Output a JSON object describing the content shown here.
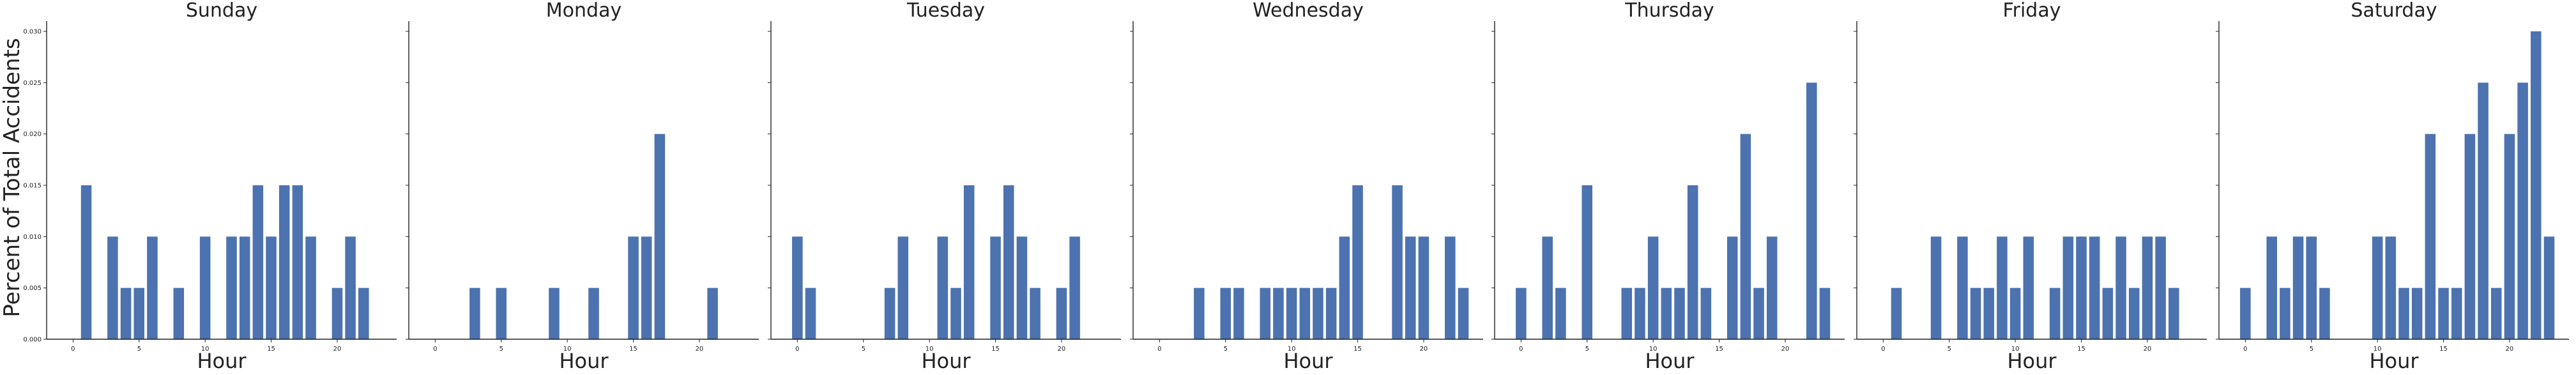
{
  "chart_data": {
    "type": "bar",
    "layout": "small-multiples",
    "ylabel": "Percent of Total Accidents",
    "xlabel": "Hour",
    "ylim": [
      0,
      0.031
    ],
    "yticks": [
      "0.000",
      "0.005",
      "0.010",
      "0.015",
      "0.020",
      "0.025",
      "0.030"
    ],
    "xlim": [
      -2,
      24.5
    ],
    "xticks": [
      "0",
      "5",
      "10",
      "15",
      "20"
    ],
    "bar_color": "#4c72b0",
    "grid": false,
    "shared_y_axis": true,
    "panels": [
      {
        "title": "Sunday",
        "x": [
          1,
          3,
          4,
          5,
          6,
          8,
          10,
          12,
          13,
          14,
          15,
          16,
          17,
          18,
          20,
          21,
          22
        ],
        "values": [
          0.015,
          0.01,
          0.005,
          0.005,
          0.01,
          0.005,
          0.01,
          0.01,
          0.01,
          0.015,
          0.01,
          0.015,
          0.015,
          0.01,
          0.005,
          0.01,
          0.005
        ]
      },
      {
        "title": "Monday",
        "x": [
          3,
          5,
          9,
          12,
          15,
          16,
          17,
          21
        ],
        "values": [
          0.005,
          0.005,
          0.005,
          0.005,
          0.01,
          0.01,
          0.02,
          0.005
        ]
      },
      {
        "title": "Tuesday",
        "x": [
          0,
          1,
          7,
          8,
          11,
          12,
          13,
          15,
          16,
          17,
          18,
          20,
          21
        ],
        "values": [
          0.01,
          0.005,
          0.005,
          0.01,
          0.01,
          0.005,
          0.015,
          0.01,
          0.015,
          0.01,
          0.005,
          0.005,
          0.01
        ]
      },
      {
        "title": "Wednesday",
        "x": [
          3,
          5,
          6,
          8,
          9,
          10,
          11,
          12,
          13,
          14,
          15,
          18,
          19,
          20,
          22,
          23
        ],
        "values": [
          0.005,
          0.005,
          0.005,
          0.005,
          0.005,
          0.005,
          0.005,
          0.005,
          0.005,
          0.01,
          0.015,
          0.015,
          0.01,
          0.01,
          0.01,
          0.005
        ]
      },
      {
        "title": "Thursday",
        "x": [
          0,
          2,
          3,
          5,
          8,
          9,
          10,
          11,
          12,
          13,
          14,
          16,
          17,
          18,
          19,
          22,
          23
        ],
        "values": [
          0.005,
          0.01,
          0.005,
          0.015,
          0.005,
          0.005,
          0.01,
          0.005,
          0.005,
          0.015,
          0.005,
          0.01,
          0.02,
          0.005,
          0.01,
          0.025,
          0.005
        ]
      },
      {
        "title": "Friday",
        "x": [
          1,
          4,
          6,
          7,
          8,
          9,
          10,
          11,
          13,
          14,
          15,
          16,
          17,
          18,
          19,
          20,
          21,
          22
        ],
        "values": [
          0.005,
          0.01,
          0.01,
          0.005,
          0.005,
          0.01,
          0.005,
          0.01,
          0.005,
          0.01,
          0.01,
          0.01,
          0.005,
          0.01,
          0.005,
          0.01,
          0.01,
          0.005
        ]
      },
      {
        "title": "Saturday",
        "x": [
          0,
          2,
          3,
          4,
          5,
          6,
          10,
          11,
          12,
          13,
          14,
          15,
          16,
          17,
          18,
          19,
          20,
          21,
          22,
          23
        ],
        "values": [
          0.005,
          0.01,
          0.005,
          0.01,
          0.01,
          0.005,
          0.01,
          0.01,
          0.005,
          0.005,
          0.02,
          0.005,
          0.005,
          0.02,
          0.025,
          0.005,
          0.02,
          0.025,
          0.03,
          0.01
        ]
      }
    ]
  }
}
